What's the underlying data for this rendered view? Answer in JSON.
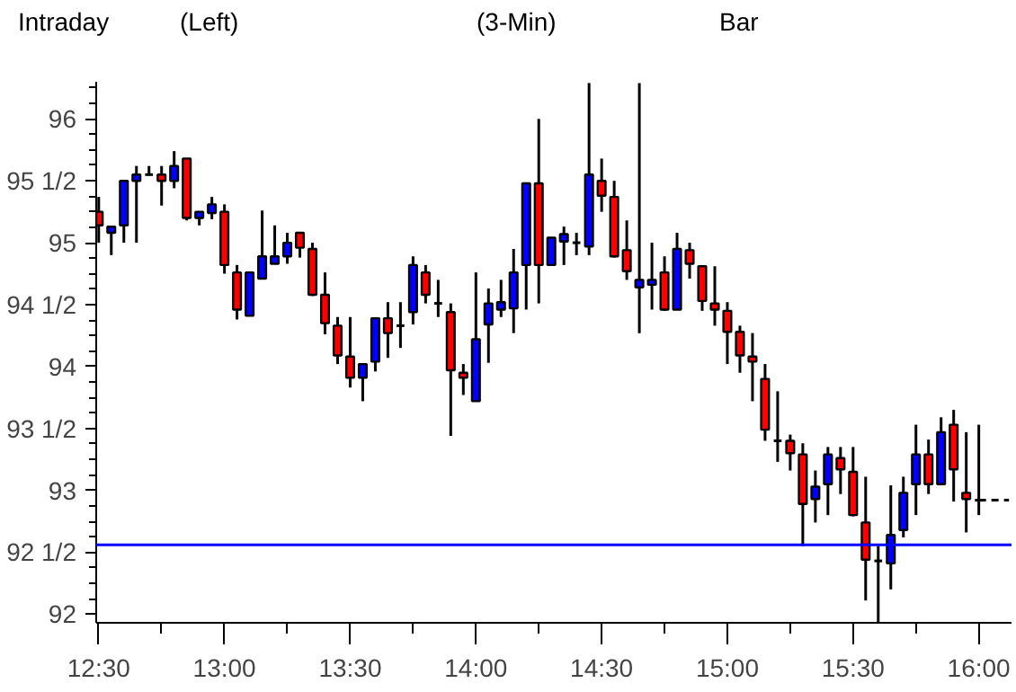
{
  "chart_data": {
    "type": "candlestick",
    "title": "Intraday",
    "annotations": [
      "(Left)",
      "(3-Min)",
      "Bar"
    ],
    "x": [
      12.5,
      12.55,
      12.6,
      12.65,
      12.7,
      12.75,
      12.8,
      12.85,
      12.9,
      12.95,
      13.0,
      13.05,
      13.1,
      13.15,
      13.2,
      13.25,
      13.3,
      13.35,
      13.4,
      13.45,
      13.5,
      13.55,
      13.6,
      13.65,
      13.7,
      13.75,
      13.8,
      13.85,
      13.9,
      13.95,
      14.0,
      14.05,
      14.1,
      14.15,
      14.2,
      14.25,
      14.3,
      14.35,
      14.4,
      14.45,
      14.5,
      14.55,
      14.6,
      14.65,
      14.7,
      14.75,
      14.8,
      14.85,
      14.9,
      14.95,
      15.0,
      15.05,
      15.1,
      15.15,
      15.2,
      15.25,
      15.3,
      15.35,
      15.4,
      15.45,
      15.5,
      15.55,
      15.6,
      15.65,
      15.7,
      15.75,
      15.8,
      15.85,
      15.9,
      15.95,
      16.0
    ],
    "ohlc": [
      [
        95.25,
        95.37,
        95.0,
        95.14
      ],
      [
        95.08,
        95.13,
        94.9,
        95.13
      ],
      [
        95.14,
        95.5,
        95.0,
        95.5
      ],
      [
        95.5,
        95.62,
        95.0,
        95.55
      ],
      [
        95.55,
        95.62,
        95.55,
        95.55
      ],
      [
        95.55,
        95.62,
        95.3,
        95.5
      ],
      [
        95.5,
        95.74,
        95.44,
        95.62
      ],
      [
        95.68,
        95.68,
        95.18,
        95.2
      ],
      [
        95.2,
        95.25,
        95.14,
        95.25
      ],
      [
        95.24,
        95.37,
        95.19,
        95.31
      ],
      [
        95.25,
        95.31,
        94.75,
        94.82
      ],
      [
        94.76,
        94.82,
        94.38,
        94.46
      ],
      [
        94.41,
        94.76,
        94.41,
        94.76
      ],
      [
        94.71,
        95.26,
        94.71,
        94.89
      ],
      [
        94.83,
        95.14,
        94.83,
        94.89
      ],
      [
        94.89,
        95.08,
        94.83,
        95.0
      ],
      [
        95.08,
        95.08,
        94.88,
        94.96
      ],
      [
        94.95,
        95.0,
        94.57,
        94.58
      ],
      [
        94.58,
        94.76,
        94.26,
        94.35
      ],
      [
        94.33,
        94.4,
        94.02,
        94.09
      ],
      [
        94.08,
        94.4,
        93.83,
        93.91
      ],
      [
        93.91,
        94.02,
        93.72,
        94.02
      ],
      [
        94.04,
        94.39,
        93.96,
        94.39
      ],
      [
        94.39,
        94.52,
        94.07,
        94.27
      ],
      [
        94.33,
        94.52,
        94.15,
        94.33
      ],
      [
        94.44,
        94.89,
        94.34,
        94.82
      ],
      [
        94.76,
        94.82,
        94.51,
        94.58
      ],
      [
        94.51,
        94.7,
        94.4,
        94.51
      ],
      [
        94.44,
        94.51,
        93.44,
        93.97
      ],
      [
        93.95,
        94.02,
        93.77,
        93.91
      ],
      [
        93.72,
        94.76,
        93.72,
        94.22
      ],
      [
        94.34,
        94.63,
        94.03,
        94.51
      ],
      [
        94.46,
        94.7,
        94.4,
        94.52
      ],
      [
        94.47,
        94.95,
        94.27,
        94.76
      ],
      [
        94.82,
        95.48,
        94.46,
        95.48
      ],
      [
        95.48,
        96.0,
        94.51,
        94.82
      ],
      [
        94.82,
        95.04,
        94.82,
        95.04
      ],
      [
        95.01,
        95.13,
        94.82,
        95.07
      ],
      [
        95.0,
        95.08,
        94.9,
        95.0
      ],
      [
        94.97,
        96.29,
        94.9,
        95.55
      ],
      [
        95.5,
        95.68,
        95.25,
        95.38
      ],
      [
        95.37,
        95.5,
        94.88,
        94.89
      ],
      [
        94.94,
        95.18,
        94.7,
        94.77
      ],
      [
        94.64,
        96.29,
        94.27,
        94.7
      ],
      [
        94.66,
        95.0,
        94.46,
        94.7
      ],
      [
        94.76,
        94.89,
        94.45,
        94.46
      ],
      [
        94.46,
        95.08,
        94.46,
        94.95
      ],
      [
        94.94,
        95.0,
        94.71,
        94.83
      ],
      [
        94.81,
        94.81,
        94.45,
        94.53
      ],
      [
        94.51,
        94.81,
        94.33,
        94.46
      ],
      [
        94.45,
        94.52,
        94.02,
        94.28
      ],
      [
        94.28,
        94.33,
        93.95,
        94.09
      ],
      [
        94.08,
        94.27,
        93.72,
        94.04
      ],
      [
        93.9,
        94.02,
        93.4,
        93.49
      ],
      [
        93.4,
        93.8,
        93.23,
        93.4
      ],
      [
        93.4,
        93.45,
        93.16,
        93.3
      ],
      [
        93.29,
        93.38,
        92.55,
        92.89
      ],
      [
        92.93,
        93.16,
        92.74,
        93.03
      ],
      [
        93.05,
        93.35,
        92.8,
        93.29
      ],
      [
        93.26,
        93.35,
        92.97,
        93.17
      ],
      [
        93.15,
        93.35,
        92.79,
        92.8
      ],
      [
        92.74,
        93.11,
        92.11,
        92.44
      ],
      [
        92.43,
        92.55,
        91.93,
        92.43
      ],
      [
        92.41,
        93.04,
        92.2,
        92.64
      ],
      [
        92.68,
        93.11,
        92.62,
        92.98
      ],
      [
        93.05,
        93.53,
        92.8,
        93.29
      ],
      [
        93.29,
        93.41,
        92.97,
        93.05
      ],
      [
        93.05,
        93.59,
        93.05,
        93.47
      ],
      [
        93.53,
        93.65,
        92.91,
        93.17
      ],
      [
        92.98,
        93.47,
        92.66,
        92.93
      ],
      [
        92.92,
        93.53,
        92.8,
        92.92
      ]
    ],
    "colors": [
      "#ff0000",
      "#0000ff",
      "#0000ff",
      "#0000ff",
      "#000000",
      "#ff0000",
      "#0000ff",
      "#ff0000",
      "#0000ff",
      "#0000ff",
      "#ff0000",
      "#ff0000",
      "#0000ff",
      "#0000ff",
      "#0000ff",
      "#0000ff",
      "#ff0000",
      "#ff0000",
      "#ff0000",
      "#ff0000",
      "#ff0000",
      "#0000ff",
      "#0000ff",
      "#ff0000",
      "#000000",
      "#0000ff",
      "#ff0000",
      "#000000",
      "#ff0000",
      "#ff0000",
      "#0000ff",
      "#0000ff",
      "#0000ff",
      "#0000ff",
      "#0000ff",
      "#ff0000",
      "#0000ff",
      "#0000ff",
      "#000000",
      "#0000ff",
      "#ff0000",
      "#ff0000",
      "#ff0000",
      "#0000ff",
      "#0000ff",
      "#ff0000",
      "#0000ff",
      "#ff0000",
      "#ff0000",
      "#ff0000",
      "#ff0000",
      "#ff0000",
      "#ff0000",
      "#ff0000",
      "#000000",
      "#ff0000",
      "#ff0000",
      "#0000ff",
      "#0000ff",
      "#ff0000",
      "#ff0000",
      "#ff0000",
      "#000000",
      "#0000ff",
      "#0000ff",
      "#0000ff",
      "#ff0000",
      "#0000ff",
      "#ff0000",
      "#ff0000",
      "#000000"
    ],
    "xlim": [
      12.49,
      16.13
    ],
    "xticks": [
      {
        "value": 12.5,
        "label": "12:30"
      },
      {
        "value": 12.75,
        "label": null
      },
      {
        "value": 13.0,
        "label": "13:00"
      },
      {
        "value": 13.25,
        "label": null
      },
      {
        "value": 13.5,
        "label": "13:30"
      },
      {
        "value": 13.75,
        "label": null
      },
      {
        "value": 14.0,
        "label": "14:00"
      },
      {
        "value": 14.25,
        "label": null
      },
      {
        "value": 14.5,
        "label": "14:30"
      },
      {
        "value": 14.75,
        "label": null
      },
      {
        "value": 15.0,
        "label": "15:00"
      },
      {
        "value": 15.25,
        "label": null
      },
      {
        "value": 15.5,
        "label": "15:30"
      },
      {
        "value": 15.75,
        "label": null
      },
      {
        "value": 16.0,
        "label": "16:00"
      }
    ],
    "ylim": [
      91.93,
      96.3
    ],
    "yticks": [
      {
        "value": 92,
        "label": "92"
      },
      {
        "value": 92.125,
        "label": null
      },
      {
        "value": 92.25,
        "label": null
      },
      {
        "value": 92.375,
        "label": null
      },
      {
        "value": 92.5,
        "label": "92 1/2"
      },
      {
        "value": 92.625,
        "label": null
      },
      {
        "value": 92.75,
        "label": null
      },
      {
        "value": 92.875,
        "label": null
      },
      {
        "value": 93,
        "label": "93"
      },
      {
        "value": 93.125,
        "label": null
      },
      {
        "value": 93.25,
        "label": null
      },
      {
        "value": 93.375,
        "label": null
      },
      {
        "value": 93.5,
        "label": "93 1/2"
      },
      {
        "value": 93.625,
        "label": null
      },
      {
        "value": 93.75,
        "label": null
      },
      {
        "value": 93.875,
        "label": null
      },
      {
        "value": 94,
        "label": "94"
      },
      {
        "value": 94.125,
        "label": null
      },
      {
        "value": 94.25,
        "label": null
      },
      {
        "value": 94.375,
        "label": null
      },
      {
        "value": 94.5,
        "label": "94 1/2"
      },
      {
        "value": 94.625,
        "label": null
      },
      {
        "value": 94.75,
        "label": null
      },
      {
        "value": 94.875,
        "label": null
      },
      {
        "value": 95,
        "label": "95"
      },
      {
        "value": 95.125,
        "label": null
      },
      {
        "value": 95.25,
        "label": null
      },
      {
        "value": 95.375,
        "label": null
      },
      {
        "value": 95.5,
        "label": "95 1/2"
      },
      {
        "value": 95.625,
        "label": null
      },
      {
        "value": 95.75,
        "label": null
      },
      {
        "value": 95.875,
        "label": null
      },
      {
        "value": 96,
        "label": "96"
      },
      {
        "value": 96.125,
        "label": null
      },
      {
        "value": 96.25,
        "label": null
      }
    ],
    "ref_lines": [
      {
        "axis": "y",
        "value": 92.56,
        "color": "#0000ff",
        "line_style": "solid"
      }
    ],
    "series": [
      {
        "type": "line",
        "x": [
          16.0,
          16.12
        ],
        "values": [
          92.92,
          92.92
        ],
        "color": "#000000",
        "line_style": "dashed"
      }
    ],
    "grid": false
  }
}
